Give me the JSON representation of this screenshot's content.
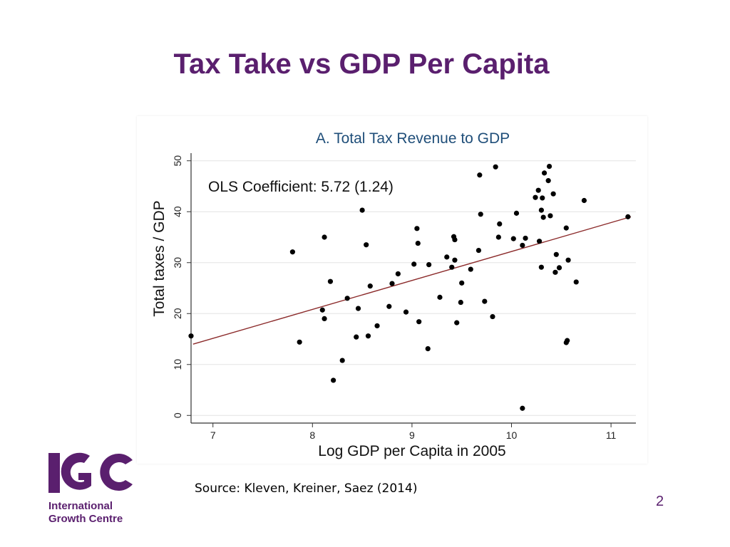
{
  "slide": {
    "title": "Tax Take vs GDP Per Capita",
    "source": "Source: Kleven, Kreiner, Saez (2014)",
    "page_number": "2"
  },
  "logo": {
    "mark_text": "IGC",
    "line1": "International",
    "line2": "Growth Centre",
    "color": "#5a1f6e"
  },
  "colors": {
    "title": "#5a1f6e",
    "chart_title": "#1f4e79",
    "fit_line": "#8b2a2a",
    "points": "#000000",
    "grid": "#e3e3e3"
  },
  "chart_data": {
    "type": "scatter",
    "title": "A. Total Tax Revenue to GDP",
    "xlabel": "Log GDP per Capita in 2005",
    "ylabel": "Total taxes / GDP",
    "annotation": "OLS Coefficient: 5.72 (1.24)",
    "xlim": [
      6.78,
      11.25
    ],
    "ylim": [
      -1.5,
      51.5
    ],
    "xticks": [
      7,
      8,
      9,
      10,
      11
    ],
    "yticks": [
      0,
      10,
      20,
      30,
      40,
      50
    ],
    "grid": true,
    "fit_line": {
      "x": [
        6.8,
        11.2
      ],
      "y": [
        14.0,
        39.0
      ]
    },
    "points": [
      [
        6.78,
        15.6
      ],
      [
        7.8,
        32.1
      ],
      [
        7.87,
        14.4
      ],
      [
        8.1,
        20.7
      ],
      [
        8.12,
        35.0
      ],
      [
        8.12,
        19.0
      ],
      [
        8.18,
        26.3
      ],
      [
        8.21,
        6.9
      ],
      [
        8.3,
        10.8
      ],
      [
        8.35,
        23.0
      ],
      [
        8.44,
        15.4
      ],
      [
        8.46,
        21.0
      ],
      [
        8.5,
        40.3
      ],
      [
        8.54,
        33.5
      ],
      [
        8.56,
        15.6
      ],
      [
        8.58,
        25.4
      ],
      [
        8.65,
        17.6
      ],
      [
        8.77,
        21.4
      ],
      [
        8.8,
        25.9
      ],
      [
        8.86,
        27.8
      ],
      [
        8.94,
        20.3
      ],
      [
        9.02,
        29.7
      ],
      [
        9.05,
        36.7
      ],
      [
        9.06,
        33.8
      ],
      [
        9.07,
        18.4
      ],
      [
        9.16,
        13.1
      ],
      [
        9.17,
        29.6
      ],
      [
        9.28,
        23.2
      ],
      [
        9.35,
        31.1
      ],
      [
        9.4,
        29.1
      ],
      [
        9.42,
        35.1
      ],
      [
        9.43,
        34.5
      ],
      [
        9.43,
        30.5
      ],
      [
        9.45,
        18.2
      ],
      [
        9.49,
        22.2
      ],
      [
        9.5,
        26.0
      ],
      [
        9.59,
        28.7
      ],
      [
        9.67,
        32.4
      ],
      [
        9.68,
        47.2
      ],
      [
        9.69,
        39.5
      ],
      [
        9.73,
        22.4
      ],
      [
        9.81,
        19.4
      ],
      [
        9.84,
        48.8
      ],
      [
        9.87,
        35.0
      ],
      [
        9.88,
        37.6
      ],
      [
        10.02,
        34.7
      ],
      [
        10.05,
        39.7
      ],
      [
        10.11,
        33.4
      ],
      [
        10.11,
        1.4
      ],
      [
        10.14,
        34.8
      ],
      [
        10.24,
        42.8
      ],
      [
        10.27,
        44.2
      ],
      [
        10.28,
        34.2
      ],
      [
        10.3,
        40.3
      ],
      [
        10.3,
        29.1
      ],
      [
        10.31,
        42.7
      ],
      [
        10.32,
        38.9
      ],
      [
        10.33,
        47.6
      ],
      [
        10.37,
        46.1
      ],
      [
        10.38,
        48.9
      ],
      [
        10.39,
        39.2
      ],
      [
        10.42,
        43.5
      ],
      [
        10.44,
        28.1
      ],
      [
        10.45,
        31.6
      ],
      [
        10.48,
        29.0
      ],
      [
        10.55,
        36.8
      ],
      [
        10.55,
        14.3
      ],
      [
        10.56,
        14.7
      ],
      [
        10.57,
        30.5
      ],
      [
        10.65,
        26.2
      ],
      [
        10.73,
        42.2
      ],
      [
        11.17,
        39.0
      ]
    ]
  }
}
